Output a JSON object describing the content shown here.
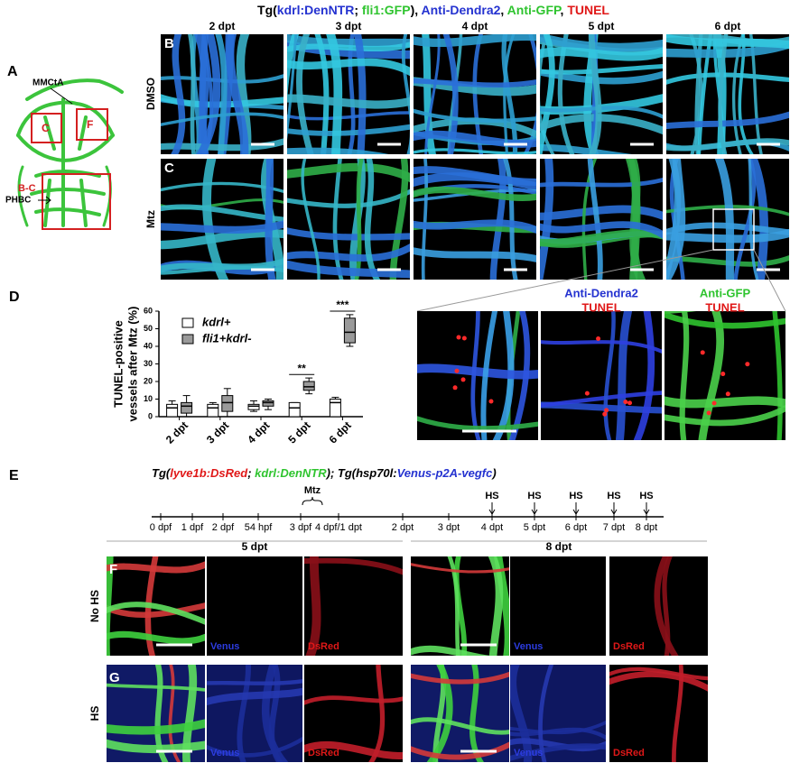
{
  "panel_a": {
    "label": "A",
    "mmcta": "MMCtA",
    "box_c": "C",
    "box_f": "F",
    "box_bc": "B-C",
    "phbc": "PHBC"
  },
  "title_bc": [
    {
      "text": "Tg(",
      "color": "#000"
    },
    {
      "text": "kdrl:DenNTR",
      "color": "#2432d0"
    },
    {
      "text": "; ",
      "color": "#000"
    },
    {
      "text": "fli1:GFP",
      "color": "#2fc42f"
    },
    {
      "text": "), ",
      "color": "#000"
    },
    {
      "text": "Anti-Dendra2",
      "color": "#2432d0"
    },
    {
      "text": ", ",
      "color": "#000"
    },
    {
      "text": "Anti-GFP",
      "color": "#2fc42f"
    },
    {
      "text": ", ",
      "color": "#000"
    },
    {
      "text": "TUNEL",
      "color": "#e01818"
    }
  ],
  "columns": [
    "2 dpt",
    "3 dpt",
    "4 dpt",
    "5 dpt",
    "6 dpt"
  ],
  "rows": [
    {
      "letter": "B",
      "label": "DMSO"
    },
    {
      "letter": "C",
      "label": "Mtz"
    }
  ],
  "zoom": [
    {
      "top": "Anti-Dendra2",
      "top_color": "#2432d0",
      "bottom": "TUNEL"
    },
    {
      "top": "Anti-GFP",
      "top_color": "#2fc42f",
      "bottom": "TUNEL"
    }
  ],
  "panel_d_label": "D",
  "chart_data": {
    "type": "box",
    "ylabel": [
      "TUNEL-positive",
      "vessels after Mtz (%)"
    ],
    "categories": [
      "2 dpt",
      "3 dpt",
      "4 dpt",
      "5 dpt",
      "6 dpt"
    ],
    "series": [
      {
        "name": "kdrl+",
        "color": "#ffffff",
        "min": [
          0,
          0,
          3,
          0,
          0
        ],
        "q1": [
          0,
          0,
          4,
          0,
          0
        ],
        "median": [
          5,
          5,
          6,
          5,
          8
        ],
        "q3": [
          7,
          7,
          7,
          8,
          10
        ],
        "max": [
          9,
          8,
          9,
          8,
          11
        ]
      },
      {
        "name": "fli1+kdrl-",
        "color": "#9a9a9a",
        "min": [
          0,
          0,
          4,
          13,
          40
        ],
        "q1": [
          2,
          3,
          6,
          15,
          42
        ],
        "median": [
          6,
          8,
          8,
          17,
          48
        ],
        "q3": [
          8,
          12,
          9,
          20,
          56
        ],
        "max": [
          12,
          16,
          10,
          22,
          58
        ]
      }
    ],
    "annotations": [
      {
        "text": "**",
        "x": "5 dpt",
        "y": 24
      },
      {
        "text": "***",
        "x": "6 dpt",
        "y": 60
      }
    ],
    "ylim": [
      0,
      60
    ],
    "yticks": [
      0,
      10,
      20,
      30,
      40,
      50,
      60
    ],
    "legend": "upper-left"
  },
  "panel_e": {
    "label": "E",
    "title": [
      {
        "text": "Tg(",
        "color": "#000"
      },
      {
        "text": "lyve1b:DsRed",
        "color": "#e01818"
      },
      {
        "text": "; ",
        "color": "#000"
      },
      {
        "text": "kdrl:DenNTR",
        "color": "#2fc42f"
      },
      {
        "text": "); Tg(",
        "color": "#000"
      },
      {
        "text": "hsp70l:",
        "color": "#000"
      },
      {
        "text": "Venus-p2A-vegfc",
        "color": "#2432d0"
      },
      {
        "text": ")",
        "color": "#000"
      }
    ],
    "timeline": [
      "0 dpf",
      "1 dpf",
      "2 dpf",
      "54 hpf",
      "3 dpf",
      "4 dpf/1 dpt",
      "2 dpt",
      "3 dpt",
      "4 dpt",
      "5 dpt",
      "6 dpt",
      "7 dpt",
      "8 dpt"
    ],
    "mtz": "Mtz",
    "hs": [
      "HS",
      "HS",
      "HS",
      "HS",
      "HS"
    ]
  },
  "panel_fg": {
    "groups": [
      "5 dpt",
      "8 dpt"
    ],
    "rows": [
      {
        "letter": "F",
        "label": "No HS"
      },
      {
        "letter": "G",
        "label": "HS"
      }
    ],
    "channels": [
      "Venus",
      "DsRed"
    ]
  }
}
